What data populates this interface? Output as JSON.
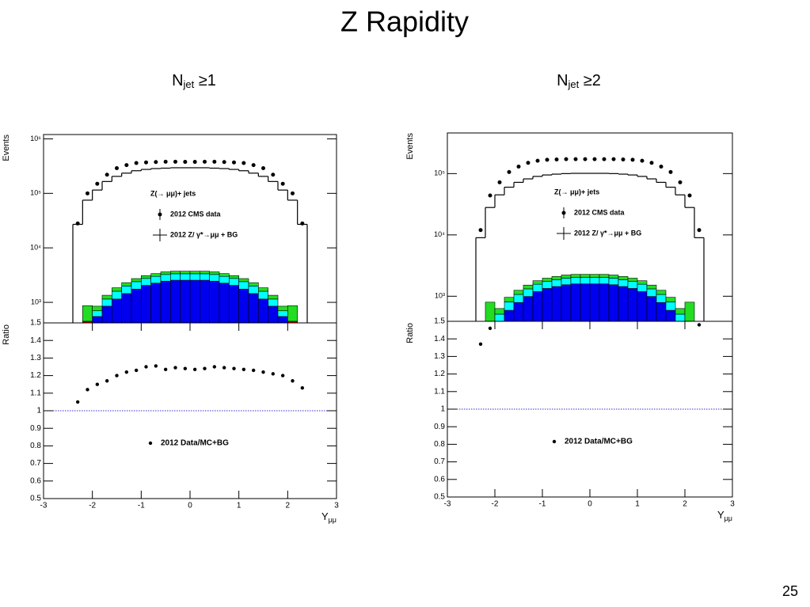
{
  "title": "Z Rapidity",
  "page_number": "25",
  "chart_data": [
    {
      "type": "histogram",
      "subtitle": {
        "main": "N",
        "sub": "jet",
        "rest": " ≥1"
      },
      "ylabel": "Events",
      "log": true,
      "bins": [
        -2.4,
        -2.2,
        -2.0,
        -1.8,
        -1.6,
        -1.4,
        -1.2,
        -1.0,
        -0.8,
        -0.6,
        -0.4,
        -0.2,
        0,
        0.2,
        0.4,
        0.6,
        0.8,
        1.0,
        1.2,
        1.4,
        1.6,
        1.8,
        2.0,
        2.2,
        2.4
      ],
      "xlim": [
        -3,
        3
      ],
      "ylim": [
        420,
        1200000
      ],
      "yticks": [
        {
          "value": 1000,
          "label": "10³"
        },
        {
          "value": 10000,
          "label": "10⁴"
        },
        {
          "value": 100000,
          "label": "10⁵"
        },
        {
          "value": 1000000,
          "label": "10⁶"
        }
      ],
      "legend_title": "Z(→ μμ)+ jets",
      "series": [
        {
          "name": "2012 CMS data",
          "color": "#000000",
          "style": "points",
          "values": [
            28000,
            100000,
            150000,
            220000,
            290000,
            330000,
            360000,
            370000,
            375000,
            380000,
            380000,
            378000,
            378000,
            380000,
            380000,
            375000,
            370000,
            360000,
            330000,
            290000,
            220000,
            150000,
            100000,
            28000
          ]
        },
        {
          "name": "2012 Z/ γ*→μμ + BG",
          "color": "#000000",
          "style": "step",
          "values": [
            27000,
            75000,
            115000,
            165000,
            205000,
            235000,
            260000,
            275000,
            285000,
            290000,
            295000,
            295000,
            295000,
            295000,
            290000,
            285000,
            275000,
            260000,
            235000,
            205000,
            165000,
            115000,
            75000,
            27000
          ]
        }
      ],
      "stack": [
        {
          "color": "#d40000",
          "values": [
            null,
            450,
            50,
            50,
            50,
            50,
            50,
            50,
            50,
            50,
            50,
            50,
            50,
            50,
            50,
            50,
            50,
            50,
            50,
            50,
            50,
            50,
            450,
            null
          ]
        },
        {
          "color": "#0000ee",
          "values": [
            null,
            null,
            500,
            800,
            1100,
            1400,
            1700,
            2000,
            2200,
            2400,
            2500,
            2500,
            2500,
            2500,
            2400,
            2200,
            2000,
            1700,
            1400,
            1100,
            800,
            500,
            null,
            null
          ]
        },
        {
          "color": "#00ffff",
          "values": [
            null,
            null,
            150,
            300,
            450,
            550,
            650,
            700,
            750,
            800,
            800,
            800,
            800,
            800,
            800,
            750,
            700,
            650,
            550,
            450,
            300,
            150,
            null,
            null
          ]
        },
        {
          "color": "#22dd22",
          "values": [
            null,
            420,
            150,
            200,
            250,
            300,
            330,
            350,
            370,
            380,
            380,
            380,
            380,
            380,
            380,
            370,
            350,
            330,
            300,
            250,
            200,
            150,
            420,
            null
          ]
        }
      ]
    },
    {
      "type": "scatter",
      "ylabel": "Ratio",
      "xlabel": {
        "main": "Y",
        "sub": "μμ"
      },
      "xlim": [
        -3,
        3
      ],
      "xticks": [
        -3,
        -2,
        -1,
        0,
        1,
        2,
        3
      ],
      "ylim": [
        0.5,
        1.5
      ],
      "yticks": [
        0.5,
        0.6,
        0.7,
        0.8,
        0.9,
        1,
        1.1,
        1.2,
        1.3,
        1.4,
        1.5
      ],
      "reference_line": 1,
      "reference_color": "#3333cc",
      "x": [
        -2.3,
        -2.1,
        -1.9,
        -1.7,
        -1.5,
        -1.3,
        -1.1,
        -0.9,
        -0.7,
        -0.5,
        -0.3,
        -0.1,
        0.1,
        0.3,
        0.5,
        0.7,
        0.9,
        1.1,
        1.3,
        1.5,
        1.7,
        1.9,
        2.1,
        2.3
      ],
      "series": [
        {
          "name": "2012 Data/MC+BG",
          "color": "#000000",
          "values": [
            1.05,
            1.12,
            1.15,
            1.17,
            1.2,
            1.22,
            1.23,
            1.25,
            1.255,
            1.235,
            1.245,
            1.24,
            1.235,
            1.24,
            1.25,
            1.245,
            1.24,
            1.235,
            1.23,
            1.22,
            1.21,
            1.2,
            1.17,
            1.13
          ]
        }
      ]
    },
    {
      "type": "histogram",
      "subtitle": {
        "main": "N",
        "sub": "jet",
        "rest": " ≥2"
      },
      "ylabel": "Events",
      "log": true,
      "bins": [
        -2.4,
        -2.2,
        -2.0,
        -1.8,
        -1.6,
        -1.4,
        -1.2,
        -1.0,
        -0.8,
        -0.6,
        -0.4,
        -0.2,
        0,
        0.2,
        0.4,
        0.6,
        0.8,
        1.0,
        1.2,
        1.4,
        1.6,
        1.8,
        2.0,
        2.2,
        2.4
      ],
      "xlim": [
        -3,
        3
      ],
      "ylim": [
        390,
        460000
      ],
      "yticks": [
        {
          "value": 1000,
          "label": "10³"
        },
        {
          "value": 10000,
          "label": "10⁴"
        },
        {
          "value": 100000,
          "label": "10⁵"
        }
      ],
      "legend_title": "Z(→ μμ)+ jets",
      "series": [
        {
          "name": "2012 CMS data",
          "color": "#000000",
          "style": "points",
          "values": [
            12000,
            44000,
            72000,
            106000,
            130000,
            150000,
            162000,
            168000,
            170000,
            172000,
            172000,
            172000,
            172000,
            172000,
            172000,
            170000,
            168000,
            162000,
            150000,
            130000,
            106000,
            72000,
            44000,
            12000
          ]
        },
        {
          "name": "2012 Z/ γ*→μμ + BG",
          "color": "#000000",
          "style": "step",
          "values": [
            9000,
            28000,
            45000,
            60000,
            72000,
            82000,
            90000,
            95000,
            98000,
            100000,
            101000,
            101000,
            101000,
            101000,
            100000,
            98000,
            95000,
            90000,
            82000,
            72000,
            60000,
            45000,
            28000,
            9000
          ]
        }
      ],
      "stack": [
        {
          "color": "#d40000",
          "values": [
            null,
            380,
            40,
            40,
            40,
            40,
            40,
            40,
            40,
            40,
            40,
            40,
            40,
            40,
            40,
            40,
            40,
            40,
            40,
            40,
            40,
            40,
            380,
            null
          ]
        },
        {
          "color": "#0000ee",
          "values": [
            null,
            null,
            350,
            550,
            750,
            950,
            1150,
            1300,
            1400,
            1500,
            1550,
            1550,
            1550,
            1550,
            1500,
            1400,
            1300,
            1150,
            950,
            750,
            550,
            350,
            null,
            null
          ]
        },
        {
          "color": "#00ffff",
          "values": [
            null,
            null,
            120,
            220,
            280,
            330,
            380,
            400,
            420,
            430,
            430,
            430,
            430,
            430,
            430,
            420,
            400,
            380,
            330,
            280,
            220,
            120,
            null,
            null
          ]
        },
        {
          "color": "#22dd22",
          "values": [
            null,
            420,
            120,
            150,
            180,
            200,
            220,
            230,
            240,
            250,
            250,
            250,
            250,
            250,
            250,
            240,
            230,
            220,
            200,
            180,
            150,
            120,
            420,
            null
          ]
        }
      ]
    },
    {
      "type": "scatter",
      "ylabel": "Ratio",
      "xlabel": {
        "main": "Y",
        "sub": "μμ"
      },
      "xlim": [
        -3,
        3
      ],
      "xticks": [
        -3,
        -2,
        -1,
        0,
        1,
        2,
        3
      ],
      "ylim": [
        0.5,
        1.5
      ],
      "yticks": [
        0.5,
        0.6,
        0.7,
        0.8,
        0.9,
        1,
        1.1,
        1.2,
        1.3,
        1.4,
        1.5
      ],
      "reference_line": 1,
      "reference_color": "#3333cc",
      "x": [
        -2.3,
        -2.1,
        -1.9,
        -1.7,
        -1.5,
        -1.3,
        -1.1,
        -0.9,
        -0.7,
        -0.5,
        -0.3,
        -0.1,
        0.1,
        0.3,
        0.5,
        0.7,
        0.9,
        1.1,
        1.3,
        1.5,
        1.7,
        1.9,
        2.1,
        2.3
      ],
      "series": [
        {
          "name": "2012 Data/MC+BG",
          "color": "#000000",
          "values": [
            1.37,
            1.46,
            null,
            null,
            null,
            null,
            null,
            null,
            null,
            null,
            null,
            null,
            null,
            null,
            null,
            null,
            null,
            null,
            null,
            null,
            null,
            null,
            null,
            1.48
          ]
        }
      ]
    }
  ]
}
